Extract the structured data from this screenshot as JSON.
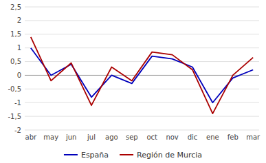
{
  "chart_data": {
    "type": "line",
    "categories": [
      "abr",
      "may",
      "jun",
      "jul",
      "ago",
      "sep",
      "oct",
      "nov",
      "dic",
      "ene",
      "feb",
      "mar"
    ],
    "series": [
      {
        "name": "España",
        "color": "#0000BB",
        "values": [
          1.0,
          0.0,
          0.4,
          -0.8,
          0.0,
          -0.3,
          0.7,
          0.6,
          0.3,
          -1.0,
          -0.1,
          0.2
        ]
      },
      {
        "name": "Región de Murcia",
        "color": "#AA0000",
        "values": [
          1.4,
          -0.2,
          0.45,
          -1.1,
          0.3,
          -0.2,
          0.85,
          0.75,
          0.2,
          -1.4,
          0.0,
          0.65
        ]
      }
    ],
    "ylim": [
      -2.0,
      2.5
    ],
    "yticks": [
      -2,
      {
        "value": -1.5,
        "label": "-1,5"
      },
      -1,
      {
        "value": -0.5,
        "label": "-0,5"
      },
      0,
      {
        "value": 0.5,
        "label": "0,5"
      },
      1,
      {
        "value": 1.5,
        "label": "1,5"
      },
      2,
      {
        "value": 2.5,
        "label": "2,5"
      }
    ],
    "grid": true,
    "legend": "bottom"
  }
}
